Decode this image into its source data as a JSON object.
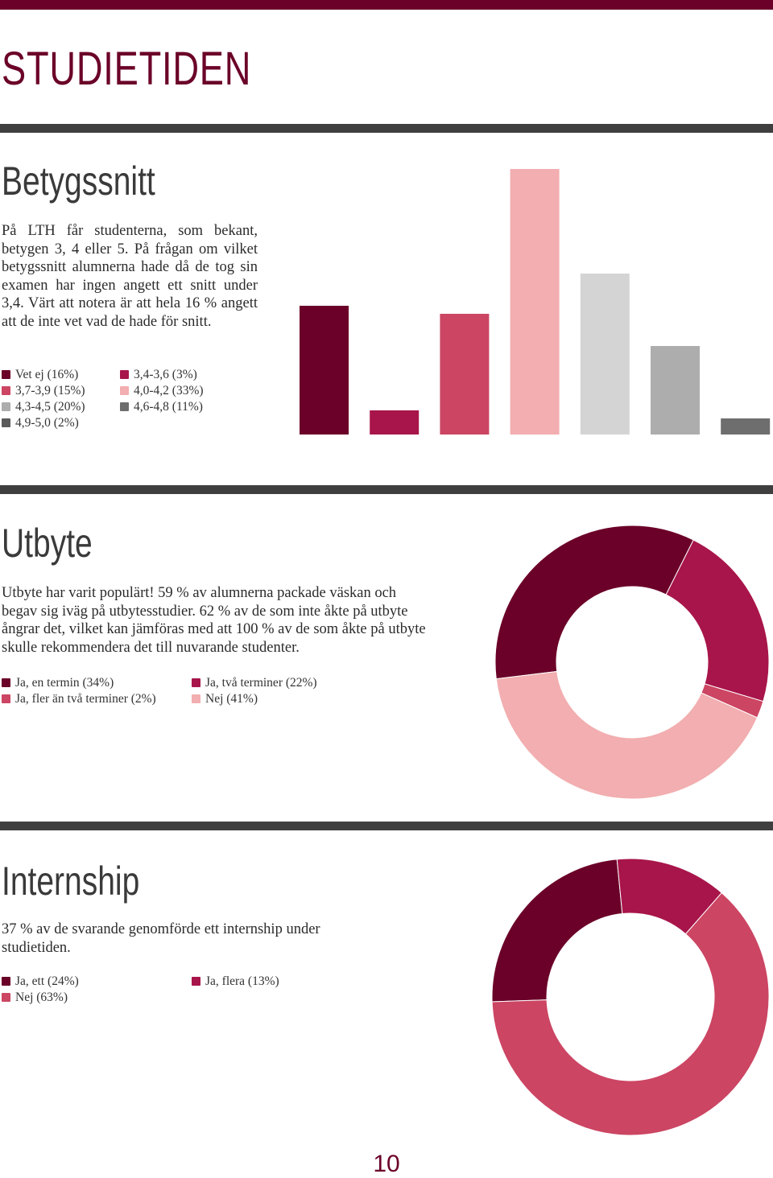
{
  "header": {
    "title": "STUDIETIDEN"
  },
  "colors": {
    "maroon": "#6b0028",
    "crimson": "#a8154a",
    "rose": "#cc4563",
    "light_pink": "#f2aeb0",
    "light_gray": "#d4d4d4",
    "mid_gray": "#adadad",
    "dark_gray": "#6e6e6e",
    "divider": "#3f3f3f"
  },
  "grades": {
    "title": "Betygssnitt",
    "text": "På LTH får studenterna, som bekant, betygen 3, 4 eller 5. På frågan om vilket betygssnitt alumnerna hade då de tog sin examen har ingen angett ett snitt under 3,4. Värt att notera är att hela 16 % angett att de inte vet vad de hade för snitt.",
    "legend": [
      {
        "label": "Vet ej (16%)",
        "color": "#6b0028"
      },
      {
        "label": "3,4-3,6 (3%)",
        "color": "#a8154a"
      },
      {
        "label": "3,7-3,9 (15%)",
        "color": "#cc4563"
      },
      {
        "label": "4,0-4,2 (33%)",
        "color": "#f2aeb0"
      },
      {
        "label": "4,3-4,5 (20%)",
        "color": "#adadad"
      },
      {
        "label": "4,6-4,8 (11%)",
        "color": "#6e6e6e"
      },
      {
        "label": "4,9-5,0 (2%)",
        "color": "#5a5a5a"
      }
    ]
  },
  "exchange": {
    "title": "Utbyte",
    "text": "Utbyte har varit populärt! 59 % av alumnerna packade väskan och begav sig iväg på utbytesstudier. 62 % av de som inte åkte på utbyte ångrar det, vilket kan jämföras med att 100 % av de som åkte på utbyte skulle rekommendera det till nuvarande studenter.",
    "legend": [
      {
        "label": "Ja, en termin (34%)",
        "color": "#6b0028"
      },
      {
        "label": "Ja, två terminer (22%)",
        "color": "#a8154a"
      },
      {
        "label": "Ja, fler än två terminer (2%)",
        "color": "#cc4563"
      },
      {
        "label": "Nej (41%)",
        "color": "#f2aeb0"
      }
    ]
  },
  "internship": {
    "title": "Internship",
    "text": "37 % av de svarande genomförde ett internship under studietiden.",
    "legend": [
      {
        "label": "Ja, ett (24%)",
        "color": "#6b0028"
      },
      {
        "label": "Ja, flera (13%)",
        "color": "#a8154a"
      },
      {
        "label": "Nej (63%)",
        "color": "#cc4563"
      }
    ]
  },
  "page_number": "10",
  "chart_data": [
    {
      "type": "bar",
      "categories": [
        "Vet ej",
        "3,4-3,6",
        "3,7-3,9",
        "4,0-4,2",
        "4,3-4,5",
        "4,6-4,8",
        "4,9-5,0"
      ],
      "values": [
        16,
        3,
        15,
        33,
        20,
        11,
        2
      ],
      "colors": [
        "#6b0028",
        "#a8154a",
        "#cc4563",
        "#f2aeb0",
        "#d4d4d4",
        "#adadad",
        "#6e6e6e"
      ],
      "ylim": [
        0,
        33
      ],
      "grid": false
    },
    {
      "type": "pie",
      "donut": true,
      "labels": [
        "Ja, en termin",
        "Ja, två terminer",
        "Ja, fler än två terminer",
        "Nej"
      ],
      "values": [
        34,
        22,
        2,
        41
      ],
      "colors": [
        "#6b0028",
        "#a8154a",
        "#cc4563",
        "#f2aeb0"
      ]
    },
    {
      "type": "pie",
      "donut": true,
      "labels": [
        "Ja, ett",
        "Ja, flera",
        "Nej"
      ],
      "values": [
        24,
        13,
        63
      ],
      "colors": [
        "#6b0028",
        "#a8154a",
        "#cc4563"
      ]
    }
  ]
}
